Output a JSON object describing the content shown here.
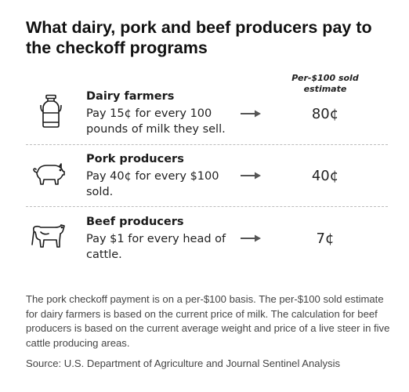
{
  "title": "What dairy, pork and beef producers pay to the checkoff programs",
  "column_header": "Per-$100 sold estimate",
  "rows": [
    {
      "icon": "milk-can-icon",
      "title": "Dairy farmers",
      "description": "Pay 15¢ for every 100 pounds of milk they sell.",
      "estimate": "80¢"
    },
    {
      "icon": "pig-icon",
      "title": "Pork producers",
      "description": "Pay 40¢ for every $100 sold.",
      "estimate": "40¢"
    },
    {
      "icon": "cow-icon",
      "title": "Beef producers",
      "description": "Pay $1 for every head of cattle.",
      "estimate": "7¢"
    }
  ],
  "note": "The pork checkoff payment is on a per-$100 basis. The per-$100 sold estimate for dairy farmers is based on the current price of milk. The calculation for beef producers is based on the current average weight and price of a live steer in five cattle producing areas.",
  "source": "Source: U.S. Department of Agriculture and Journal Sentinel Analysis"
}
